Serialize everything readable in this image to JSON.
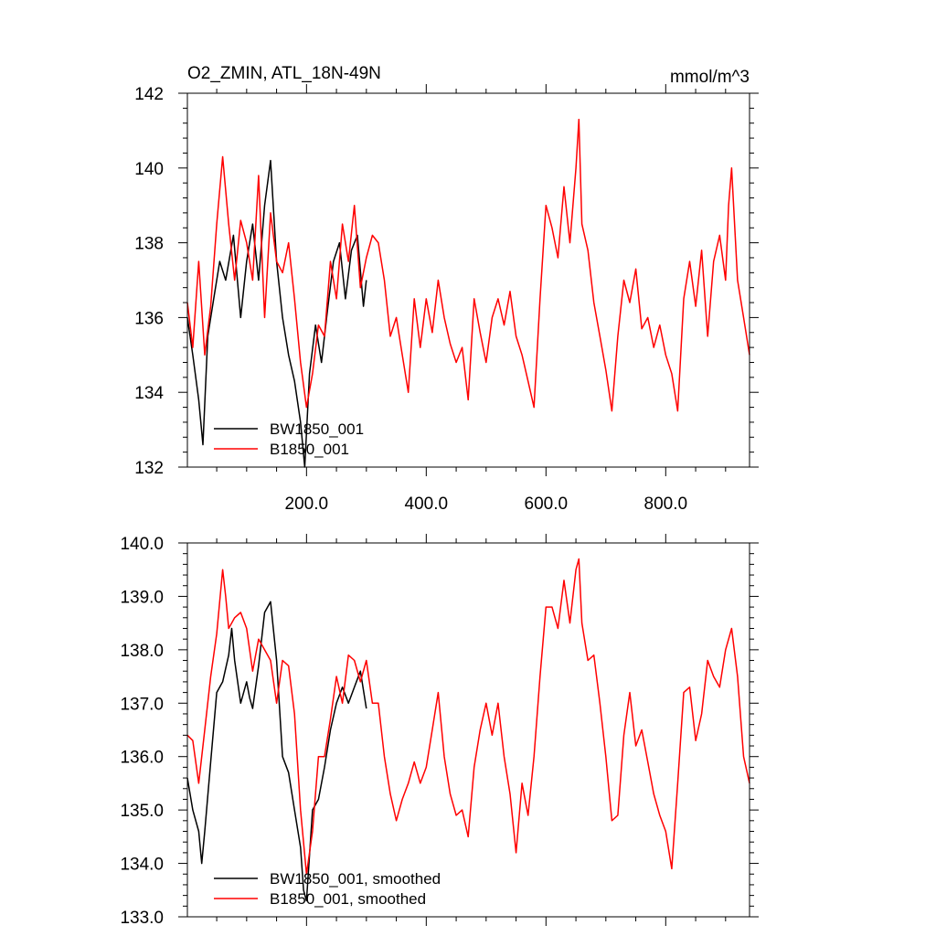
{
  "chart_data": [
    {
      "type": "line",
      "title": "O2_ZMIN, ATL_18N-49N",
      "units": "mmol/m^3",
      "xlim": [
        1,
        940
      ],
      "ylim": [
        132,
        142
      ],
      "xticks": [
        200,
        400,
        600,
        800
      ],
      "xtick_labels": [
        "200.0",
        "400.0",
        "600.0",
        "800.0"
      ],
      "yticks": [
        132,
        134,
        136,
        138,
        140,
        142
      ],
      "ytick_labels": [
        "132",
        "134",
        "136",
        "138",
        "140",
        "142"
      ],
      "grid": false,
      "legend_position": "bottom-left",
      "series": [
        {
          "name": "BW1850_001",
          "color": "#000000",
          "x": [
            1,
            10,
            20,
            27,
            35,
            45,
            55,
            65,
            78,
            90,
            100,
            110,
            120,
            130,
            140,
            150,
            160,
            170,
            180,
            190,
            197,
            205,
            215,
            225,
            235,
            245,
            255,
            265,
            275,
            285,
            295,
            300
          ],
          "y": [
            136.0,
            135.0,
            133.8,
            132.6,
            135.5,
            136.5,
            137.5,
            137.0,
            138.2,
            136.0,
            137.5,
            138.5,
            137.0,
            139.0,
            140.2,
            137.5,
            136.0,
            135.0,
            134.3,
            133.2,
            132.0,
            134.5,
            135.8,
            134.8,
            136.2,
            137.5,
            138.0,
            136.5,
            137.8,
            138.2,
            136.3,
            137.0
          ]
        },
        {
          "name": "B1850_001",
          "color": "#ff0000",
          "x": [
            1,
            10,
            20,
            30,
            40,
            50,
            60,
            70,
            80,
            90,
            100,
            110,
            120,
            130,
            140,
            150,
            160,
            170,
            180,
            190,
            200,
            210,
            220,
            230,
            240,
            250,
            260,
            270,
            280,
            290,
            300,
            310,
            320,
            330,
            340,
            350,
            360,
            370,
            380,
            390,
            400,
            410,
            420,
            430,
            440,
            450,
            460,
            470,
            480,
            490,
            500,
            510,
            520,
            530,
            540,
            550,
            560,
            570,
            580,
            590,
            600,
            610,
            620,
            630,
            640,
            650,
            655,
            660,
            670,
            680,
            690,
            700,
            710,
            720,
            730,
            740,
            750,
            760,
            770,
            780,
            790,
            800,
            810,
            820,
            830,
            840,
            850,
            860,
            870,
            880,
            890,
            900,
            905,
            910,
            920,
            930,
            940
          ],
          "y": [
            136.4,
            135.2,
            137.5,
            135.0,
            136.3,
            138.5,
            140.3,
            138.5,
            137.0,
            138.6,
            138.0,
            137.0,
            139.8,
            136.0,
            138.8,
            137.5,
            137.2,
            138.0,
            136.5,
            134.8,
            133.6,
            134.5,
            135.8,
            135.5,
            137.5,
            136.5,
            138.5,
            137.5,
            139.0,
            136.8,
            137.6,
            138.2,
            138.0,
            137.0,
            135.5,
            136.0,
            135.0,
            134.0,
            136.5,
            135.2,
            136.5,
            135.6,
            137.0,
            136.0,
            135.3,
            134.8,
            135.2,
            133.8,
            136.5,
            135.6,
            134.8,
            136.0,
            136.5,
            135.8,
            136.7,
            135.5,
            135.0,
            134.3,
            133.6,
            136.5,
            139.0,
            138.4,
            137.6,
            139.5,
            138.0,
            140.0,
            141.3,
            138.5,
            137.8,
            136.4,
            135.5,
            134.6,
            133.5,
            135.5,
            137.0,
            136.4,
            137.3,
            135.7,
            136.0,
            135.2,
            135.8,
            135.0,
            134.5,
            133.5,
            136.5,
            137.5,
            136.3,
            137.8,
            135.5,
            137.5,
            138.2,
            137.0,
            139.0,
            140.0,
            137.0,
            136.0,
            135.0
          ]
        }
      ]
    },
    {
      "type": "line",
      "title": "",
      "xlim": [
        1,
        940
      ],
      "ylim": [
        133.0,
        140.0
      ],
      "yticks": [
        133.0,
        134.0,
        135.0,
        136.0,
        137.0,
        138.0,
        139.0,
        140.0
      ],
      "ytick_labels": [
        "133.0",
        "134.0",
        "135.0",
        "136.0",
        "137.0",
        "138.0",
        "139.0",
        "140.0"
      ],
      "grid": false,
      "legend_position": "bottom-left",
      "series": [
        {
          "name": "BW1850_001, smoothed",
          "color": "#000000",
          "x": [
            1,
            10,
            20,
            25,
            30,
            40,
            50,
            60,
            70,
            75,
            80,
            90,
            100,
            105,
            110,
            120,
            130,
            140,
            150,
            160,
            170,
            180,
            190,
            195,
            200,
            210,
            220,
            230,
            240,
            250,
            260,
            270,
            280,
            290,
            300
          ],
          "y": [
            135.6,
            135.0,
            134.6,
            134.0,
            134.6,
            135.9,
            137.2,
            137.4,
            137.9,
            138.4,
            137.8,
            137.0,
            137.4,
            137.1,
            136.9,
            137.7,
            138.7,
            138.9,
            137.8,
            136.0,
            135.7,
            135.0,
            134.3,
            133.5,
            133.3,
            135.0,
            135.2,
            135.8,
            136.5,
            137.0,
            137.3,
            137.0,
            137.3,
            137.6,
            136.9
          ]
        },
        {
          "name": "B1850_001, smoothed",
          "color": "#ff0000",
          "x": [
            1,
            10,
            20,
            30,
            40,
            50,
            60,
            65,
            70,
            80,
            90,
            100,
            110,
            120,
            130,
            140,
            150,
            160,
            170,
            180,
            190,
            200,
            210,
            220,
            230,
            240,
            250,
            260,
            270,
            280,
            290,
            300,
            310,
            320,
            330,
            340,
            350,
            360,
            370,
            380,
            390,
            400,
            410,
            420,
            430,
            440,
            450,
            460,
            470,
            480,
            490,
            500,
            510,
            520,
            530,
            540,
            550,
            560,
            570,
            580,
            590,
            600,
            610,
            620,
            630,
            640,
            650,
            655,
            660,
            670,
            680,
            690,
            700,
            710,
            720,
            730,
            740,
            750,
            760,
            770,
            780,
            790,
            800,
            810,
            820,
            830,
            840,
            850,
            860,
            870,
            880,
            890,
            900,
            910,
            920,
            930,
            940
          ],
          "y": [
            136.4,
            136.3,
            135.5,
            136.5,
            137.5,
            138.3,
            139.5,
            139.0,
            138.4,
            138.6,
            138.7,
            138.4,
            137.6,
            138.2,
            138.0,
            137.8,
            137.0,
            137.8,
            137.7,
            136.8,
            135.0,
            133.8,
            134.6,
            136.0,
            136.0,
            136.7,
            137.5,
            137.0,
            137.9,
            137.8,
            137.4,
            137.8,
            137.0,
            137.0,
            136.0,
            135.3,
            134.8,
            135.2,
            135.5,
            135.9,
            135.5,
            135.8,
            136.5,
            137.2,
            136.0,
            135.3,
            134.9,
            135.0,
            134.5,
            135.8,
            136.5,
            137.0,
            136.4,
            137.0,
            136.0,
            135.3,
            134.2,
            135.5,
            134.9,
            136.0,
            137.5,
            138.8,
            138.8,
            138.4,
            139.3,
            138.5,
            139.5,
            139.7,
            138.5,
            137.8,
            137.9,
            137.0,
            136.0,
            134.8,
            134.9,
            136.4,
            137.2,
            136.2,
            136.5,
            135.9,
            135.3,
            134.9,
            134.6,
            133.9,
            135.5,
            137.2,
            137.3,
            136.3,
            136.8,
            137.8,
            137.5,
            137.3,
            138.0,
            138.4,
            137.5,
            136.0,
            135.5
          ]
        }
      ]
    }
  ]
}
